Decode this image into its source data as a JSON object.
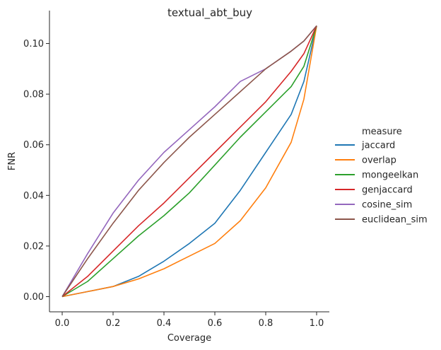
{
  "chart_data": {
    "type": "line",
    "title": "textual_abt_buy",
    "xlabel": "Coverage",
    "ylabel": "FNR",
    "xlim": [
      -0.05,
      1.05
    ],
    "ylim": [
      -0.006,
      0.113
    ],
    "xticks": [
      "0.0",
      "0.2",
      "0.4",
      "0.6",
      "0.8",
      "1.0"
    ],
    "yticks": [
      "0.00",
      "0.02",
      "0.04",
      "0.06",
      "0.08",
      "0.10"
    ],
    "grid": false,
    "legend": {
      "title": "measure",
      "placement": "right"
    },
    "x": [
      0.0,
      0.1,
      0.2,
      0.3,
      0.4,
      0.5,
      0.6,
      0.7,
      0.8,
      0.9,
      0.95,
      1.0
    ],
    "series": [
      {
        "name": "jaccard",
        "color": "#1f77b4",
        "values": [
          0.0,
          0.002,
          0.004,
          0.008,
          0.014,
          0.021,
          0.029,
          0.042,
          0.057,
          0.072,
          0.085,
          0.107
        ]
      },
      {
        "name": "overlap",
        "color": "#ff7f0e",
        "values": [
          0.0,
          0.002,
          0.004,
          0.007,
          0.011,
          0.016,
          0.021,
          0.03,
          0.043,
          0.061,
          0.078,
          0.107
        ]
      },
      {
        "name": "mongeelkan",
        "color": "#2ca02c",
        "values": [
          0.0,
          0.006,
          0.015,
          0.024,
          0.032,
          0.041,
          0.052,
          0.063,
          0.073,
          0.083,
          0.091,
          0.107
        ]
      },
      {
        "name": "genjaccard",
        "color": "#d62728",
        "values": [
          0.0,
          0.008,
          0.018,
          0.028,
          0.037,
          0.047,
          0.057,
          0.067,
          0.077,
          0.089,
          0.096,
          0.107
        ]
      },
      {
        "name": "cosine_sim",
        "color": "#9467bd",
        "values": [
          0.0,
          0.017,
          0.033,
          0.046,
          0.057,
          0.066,
          0.075,
          0.085,
          0.09,
          0.097,
          0.101,
          0.107
        ]
      },
      {
        "name": "euclidean_sim",
        "color": "#8c564b",
        "values": [
          0.0,
          0.015,
          0.029,
          0.042,
          0.053,
          0.063,
          0.072,
          0.081,
          0.09,
          0.097,
          0.101,
          0.107
        ]
      }
    ]
  }
}
